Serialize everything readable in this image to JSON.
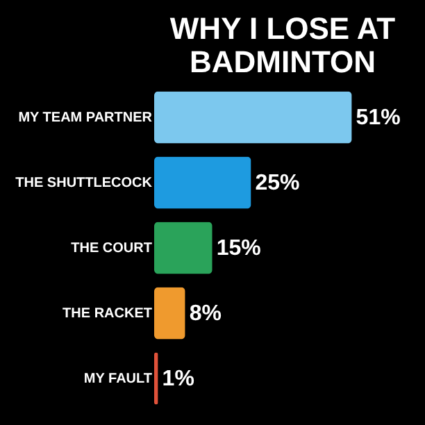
{
  "chart_data": {
    "type": "bar",
    "orientation": "horizontal",
    "title": "WHY I LOSE AT BADMINTON",
    "categories": [
      "MY TEAM PARTNER",
      "THE SHUTTLECOCK",
      "THE COURT",
      "THE RACKET",
      "MY FAULT"
    ],
    "values": [
      51,
      25,
      15,
      8,
      1
    ],
    "colors": [
      "#7cc8ee",
      "#1e9be0",
      "#2aa35a",
      "#ef9a2e",
      "#e0523a"
    ],
    "value_labels": [
      "51%",
      "25%",
      "15%",
      "8%",
      "1%"
    ],
    "legend": false,
    "grid": false
  }
}
